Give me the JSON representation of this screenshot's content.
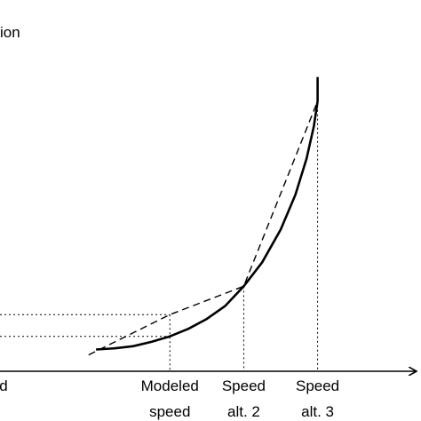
{
  "chart_data": {
    "type": "line",
    "title": "",
    "ylabel_visible": "ion",
    "xlabel": "",
    "x_ticks": [
      {
        "lines": [
          "d",
          ""
        ]
      },
      {
        "lines": [
          "Modeled",
          "speed"
        ]
      },
      {
        "lines": [
          "Speed",
          "alt. 2"
        ]
      },
      {
        "lines": [
          "Speed",
          "alt. 3"
        ]
      }
    ],
    "series": [
      {
        "style": "solid",
        "x": [
          0,
          0.25,
          0.5,
          0.75,
          1.0,
          1.25,
          1.5,
          1.75,
          2.0,
          2.25,
          2.5,
          2.7,
          2.85,
          2.95,
          3.0,
          3.0
        ],
        "y": [
          0.2,
          0.21,
          0.23,
          0.27,
          0.32,
          0.39,
          0.48,
          0.6,
          0.78,
          1.0,
          1.3,
          1.62,
          1.95,
          2.25,
          2.48,
          2.7
        ]
      },
      {
        "style": "dashed",
        "x": [
          -0.1,
          1.0,
          2.0,
          3.0
        ],
        "y": [
          0.15,
          0.52,
          0.78,
          2.48
        ]
      }
    ],
    "guides": [
      {
        "x": 1.0,
        "y_solid": 0.32,
        "y_dashed": 0.52
      },
      {
        "x": 2.0,
        "y": 0.78
      },
      {
        "x": 3.0,
        "y": 2.48
      }
    ],
    "xlim": [
      -1.3,
      4.4
    ],
    "ylim": [
      0,
      3.0
    ],
    "grid": false,
    "legend": "none"
  }
}
